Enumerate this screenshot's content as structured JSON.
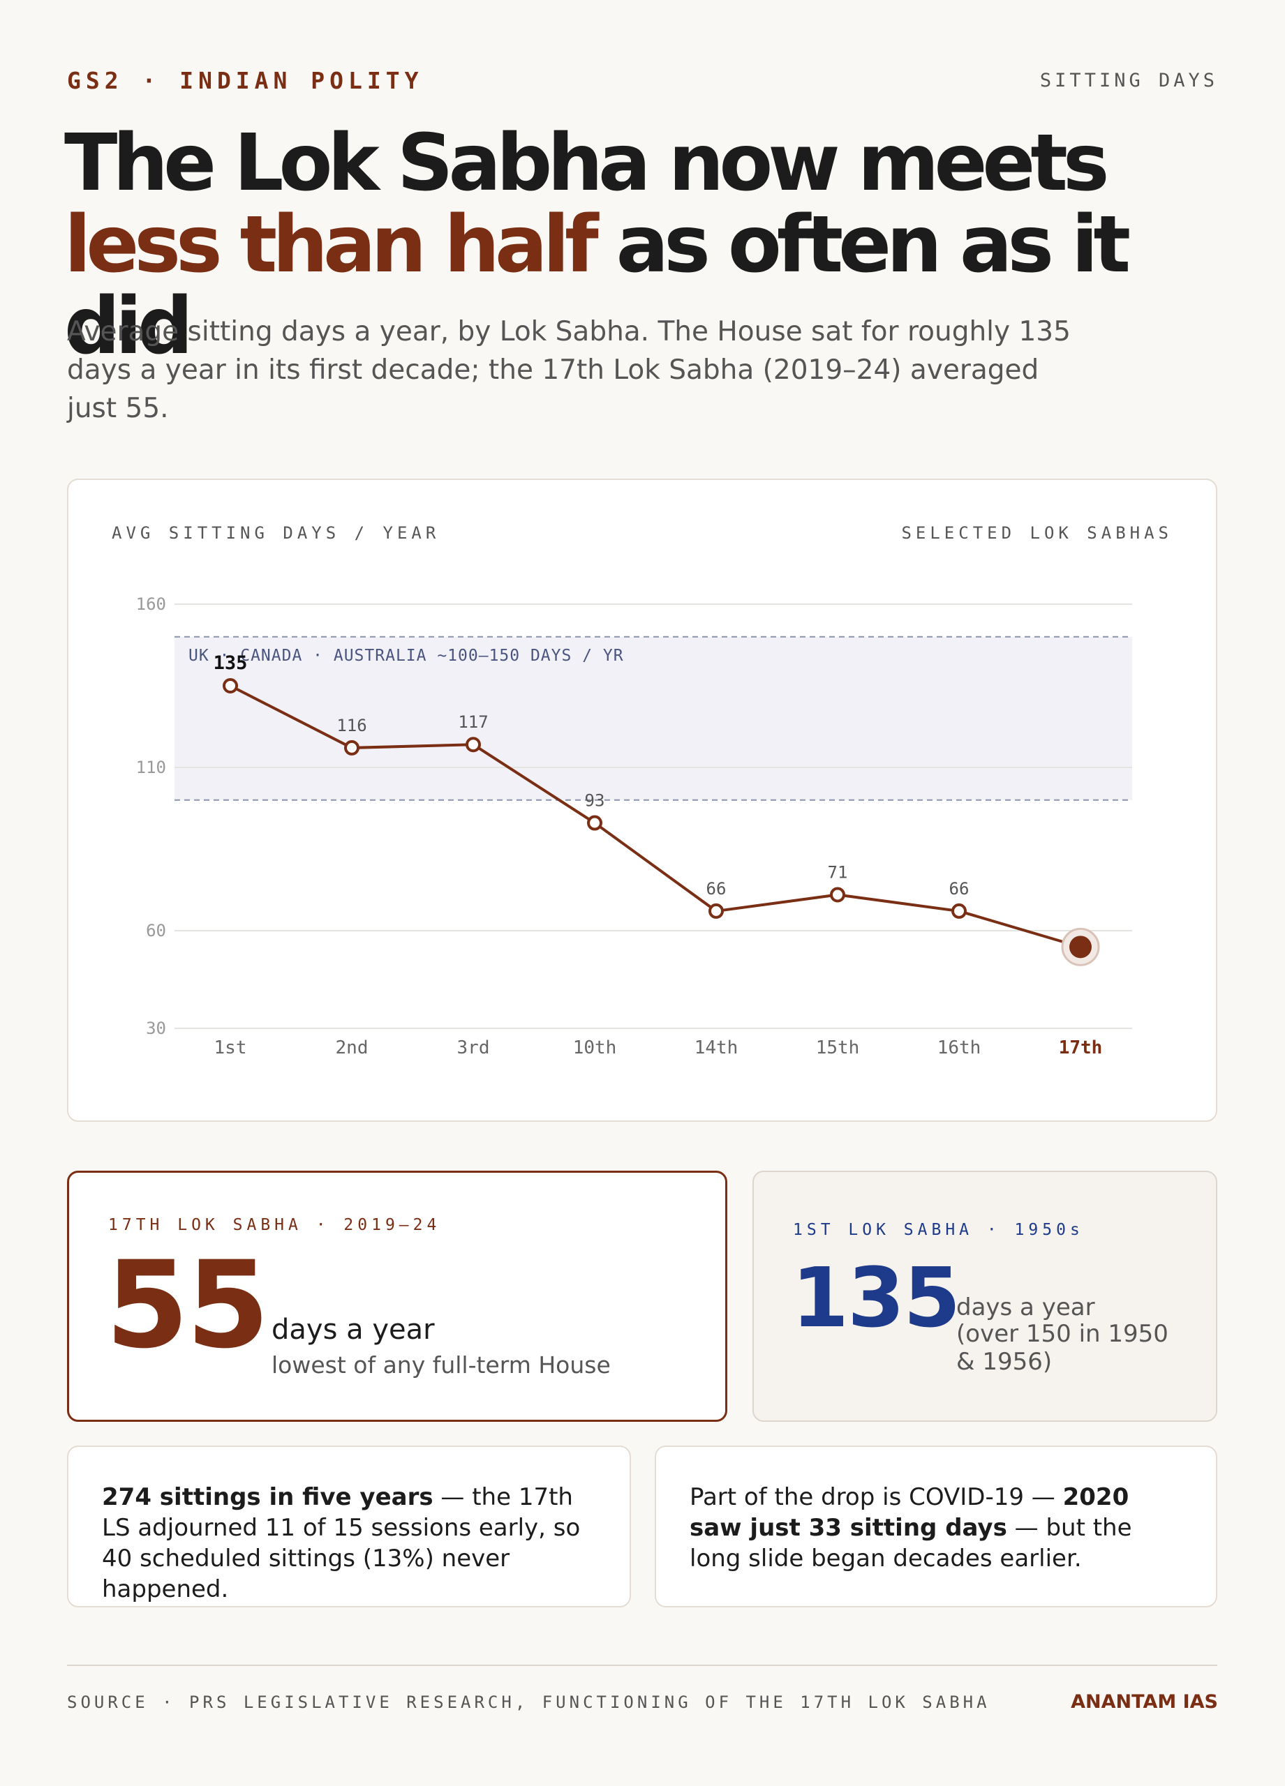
{
  "header": {
    "kicker": "GS2 · INDIAN POLITY",
    "kicker_right": "SITTING DAYS",
    "headline_line1": "The Lok Sabha now meets",
    "headline_accent": "less than half",
    "headline_rest": " as often as it did",
    "subhead": "Average sitting days a year, by Lok Sabha. The House sat for roughly 135 days a year in its first decade; the 17th Lok Sabha (2019–24) averaged just 55."
  },
  "chart": {
    "label_left": "AVG SITTING DAYS / YEAR",
    "label_right": "SELECTED LOK SABHAS"
  },
  "chart_data": {
    "type": "line",
    "categories": [
      "1st",
      "2nd",
      "3rd",
      "10th",
      "14th",
      "15th",
      "16th",
      "17th"
    ],
    "values": [
      135,
      116,
      117,
      93,
      66,
      71,
      66,
      55
    ],
    "data_labels": [
      "135",
      "116",
      "117",
      "93",
      "66",
      "71",
      "66",
      ""
    ],
    "y_ticks": [
      30,
      60,
      110,
      160
    ],
    "y_tick_labels": [
      "30",
      "60",
      "110",
      "160"
    ],
    "ylim": [
      30,
      160
    ],
    "band": {
      "from": 100,
      "to": 150,
      "label": "UK · CANADA · AUSTRALIA ~100–150 DAYS / YR"
    },
    "highlight_index": 7,
    "grid": true,
    "title": "",
    "xlabel": "",
    "ylabel": ""
  },
  "colors": {
    "accent": "#7a2e14",
    "blue": "#1e3a8a",
    "band_fill": "#f1f1f7",
    "band_line": "#8a92ac",
    "grid": "#e6e4e0",
    "tick_text": "#999999"
  },
  "stats": {
    "a_label": "17TH LOK SABHA · 2019–24",
    "a_value": "55",
    "a_unit": "days a year",
    "a_note": "lowest of any full-term House",
    "b_label": "1ST LOK SABHA · 1950s",
    "b_value": "135",
    "b_unit": "days a year",
    "b_note": "(over 150 in 1950 & 1956)"
  },
  "notes": {
    "n1_bold": "274 sittings in five years",
    "n1_text": " — the 17th LS adjourned 11 of 15 sessions early, so 40 scheduled sittings (13%) never happened.",
    "n2_text1": "Part of the drop is COVID-19 — ",
    "n2_bold": "2020 saw just 33 sitting days",
    "n2_text2": " — but the long slide began decades earlier."
  },
  "footer": {
    "source": "SOURCE · PRS LEGISLATIVE RESEARCH, FUNCTIONING OF THE 17TH LOK SABHA",
    "brand": "ANANTAM IAS"
  }
}
